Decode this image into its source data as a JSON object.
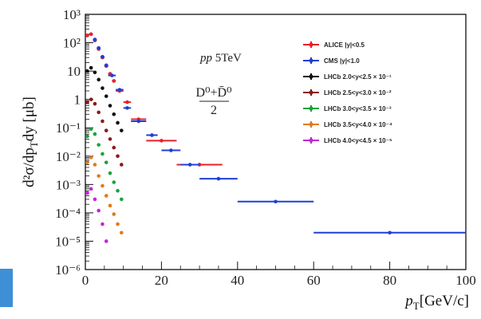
{
  "chart_data": {
    "type": "scatter",
    "xlabel_main": "p",
    "xlabel_sub": "T",
    "xlabel_unit": "[GeV/c]",
    "ylabel_main": "d²σ/dp",
    "ylabel_sub": "T",
    "ylabel_tail": "dy [μb]",
    "annotation": {
      "system": "pp",
      "energy": "5TeV",
      "numerator": "D⁰+D̄⁰",
      "denominator": "2"
    },
    "xlim": [
      0,
      100
    ],
    "ylim": [
      1e-06,
      1000
    ],
    "y_log": true,
    "legend_position": "top-right",
    "xticks": [
      {
        "value": 0,
        "label": "0"
      },
      {
        "value": 20,
        "label": "20"
      },
      {
        "value": 40,
        "label": "40"
      },
      {
        "value": 60,
        "label": "60"
      },
      {
        "value": 80,
        "label": "80"
      },
      {
        "value": 100,
        "label": "100"
      }
    ],
    "yticks": [
      {
        "exp": -6,
        "label": "10⁻⁶"
      },
      {
        "exp": -5,
        "label": "10⁻⁵"
      },
      {
        "exp": -4,
        "label": "10⁻⁴"
      },
      {
        "exp": -3,
        "label": "10⁻³"
      },
      {
        "exp": -2,
        "label": "10⁻²"
      },
      {
        "exp": -1,
        "label": "10⁻¹"
      },
      {
        "exp": 0,
        "label": "1"
      },
      {
        "exp": 1,
        "label": "10"
      },
      {
        "exp": 2,
        "label": "10²"
      },
      {
        "exp": 3,
        "label": "10³"
      }
    ],
    "series": [
      {
        "name": "ALICE |y|<0.5",
        "color": "#e8202a",
        "points": [
          {
            "x": 0.5,
            "xerr": 0.5,
            "y": 180
          },
          {
            "x": 1.5,
            "xerr": 0.5,
            "y": 200
          },
          {
            "x": 2.5,
            "xerr": 0.5,
            "y": 120
          },
          {
            "x": 3.5,
            "xerr": 0.5,
            "y": 60
          },
          {
            "x": 4.5,
            "xerr": 0.5,
            "y": 30
          },
          {
            "x": 5.5,
            "xerr": 0.5,
            "y": 15
          },
          {
            "x": 6.5,
            "xerr": 0.5,
            "y": 8
          },
          {
            "x": 7.5,
            "xerr": 0.5,
            "y": 4.5
          },
          {
            "x": 9,
            "xerr": 1,
            "y": 2
          },
          {
            "x": 11,
            "xerr": 1,
            "y": 0.8
          },
          {
            "x": 14,
            "xerr": 2,
            "y": 0.2
          },
          {
            "x": 20,
            "xerr": 4,
            "y": 0.035
          },
          {
            "x": 30,
            "xerr": 6,
            "y": 0.005
          }
        ]
      },
      {
        "name": "CMS |y|<1.0",
        "color": "#1f3fd6",
        "points": [
          {
            "x": 2.5,
            "xerr": 0.5,
            "y": 130
          },
          {
            "x": 3.5,
            "xerr": 0.5,
            "y": 65
          },
          {
            "x": 4.5,
            "xerr": 0.5,
            "y": 32
          },
          {
            "x": 5.5,
            "xerr": 0.5,
            "y": 16
          },
          {
            "x": 7,
            "xerr": 1,
            "y": 7
          },
          {
            "x": 9,
            "xerr": 1,
            "y": 2.2
          },
          {
            "x": 11,
            "xerr": 1,
            "y": 0.5
          },
          {
            "x": 14,
            "xerr": 2,
            "y": 0.17
          },
          {
            "x": 17.5,
            "xerr": 1.5,
            "y": 0.055
          },
          {
            "x": 22.5,
            "xerr": 2.5,
            "y": 0.016
          },
          {
            "x": 27.5,
            "xerr": 2.5,
            "y": 0.005
          },
          {
            "x": 35,
            "xerr": 5,
            "y": 0.0016
          },
          {
            "x": 50,
            "xerr": 10,
            "y": 0.00025
          },
          {
            "x": 80,
            "xerr": 20,
            "y": 2e-05
          }
        ]
      },
      {
        "name": "LHCb 2.0<y<2.5 × 10⁻¹",
        "color": "#111111",
        "points": [
          {
            "x": 0.5,
            "y": 10
          },
          {
            "x": 1.5,
            "y": 13
          },
          {
            "x": 2.5,
            "y": 9
          },
          {
            "x": 3.5,
            "y": 5
          },
          {
            "x": 4.5,
            "y": 2.5
          },
          {
            "x": 5.5,
            "y": 1.3
          },
          {
            "x": 6.5,
            "y": 0.6
          },
          {
            "x": 7.5,
            "y": 0.3
          },
          {
            "x": 8.5,
            "y": 0.15
          },
          {
            "x": 9.5,
            "y": 0.08
          }
        ]
      },
      {
        "name": "LHCb 2.5<y<3.0 × 10⁻²",
        "color": "#8b1a1a",
        "points": [
          {
            "x": 0.5,
            "y": 0.8
          },
          {
            "x": 1.5,
            "y": 1.0
          },
          {
            "x": 2.5,
            "y": 0.7
          },
          {
            "x": 3.5,
            "y": 0.35
          },
          {
            "x": 4.5,
            "y": 0.17
          },
          {
            "x": 5.5,
            "y": 0.08
          },
          {
            "x": 6.5,
            "y": 0.04
          },
          {
            "x": 7.5,
            "y": 0.02
          },
          {
            "x": 8.5,
            "y": 0.01
          },
          {
            "x": 9.5,
            "y": 0.005
          }
        ]
      },
      {
        "name": "LHCb 3.0<y<3.5 × 10⁻³",
        "color": "#1aa33a",
        "points": [
          {
            "x": 0.5,
            "y": 0.05
          },
          {
            "x": 1.5,
            "y": 0.09
          },
          {
            "x": 2.5,
            "y": 0.06
          },
          {
            "x": 3.5,
            "y": 0.025
          },
          {
            "x": 4.5,
            "y": 0.012
          },
          {
            "x": 5.5,
            "y": 0.006
          },
          {
            "x": 6.5,
            "y": 0.0025
          },
          {
            "x": 7.5,
            "y": 0.0012
          },
          {
            "x": 8.5,
            "y": 0.0006
          },
          {
            "x": 9.5,
            "y": 0.0003
          }
        ]
      },
      {
        "name": "LHCb 3.5<y<4.0 × 10⁻⁴",
        "color": "#e07b1a",
        "points": [
          {
            "x": 0.5,
            "y": 0.006
          },
          {
            "x": 1.5,
            "y": 0.009
          },
          {
            "x": 2.5,
            "y": 0.005
          },
          {
            "x": 3.5,
            "y": 0.002
          },
          {
            "x": 4.5,
            "y": 0.0009
          },
          {
            "x": 5.5,
            "y": 0.0004
          },
          {
            "x": 6.5,
            "y": 0.00018
          },
          {
            "x": 7.5,
            "y": 9e-05
          },
          {
            "x": 8.5,
            "y": 4e-05
          },
          {
            "x": 9.5,
            "y": 2e-05
          }
        ]
      },
      {
        "name": "LHCb 4.0<y<4.5 × 10⁻⁵",
        "color": "#c227d6",
        "points": [
          {
            "x": 0.5,
            "y": 0.0005
          },
          {
            "x": 1.5,
            "y": 0.0007
          },
          {
            "x": 2.5,
            "y": 0.0003
          },
          {
            "x": 3.5,
            "y": 0.00012
          },
          {
            "x": 4.5,
            "y": 4e-05
          },
          {
            "x": 5.5,
            "y": 1e-05
          }
        ]
      }
    ]
  }
}
